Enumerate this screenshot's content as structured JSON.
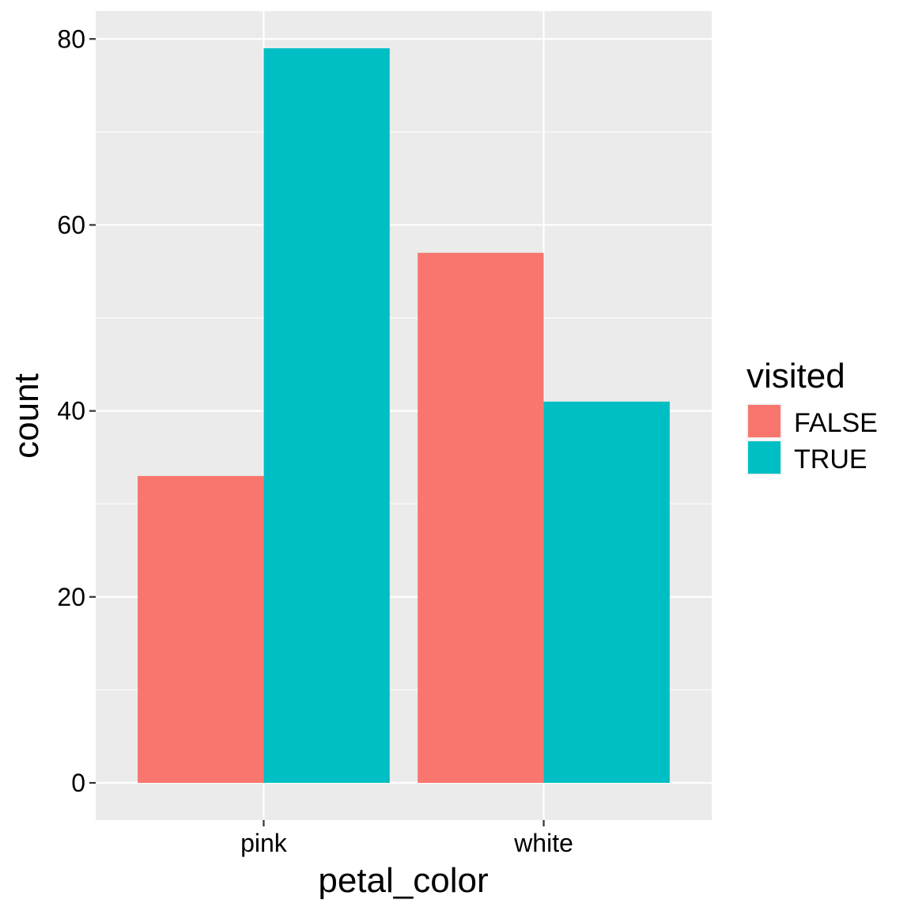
{
  "chart_data": {
    "type": "bar",
    "title": "",
    "xlabel": "petal_color",
    "ylabel": "count",
    "categories": [
      "pink",
      "white"
    ],
    "series": [
      {
        "name": "FALSE",
        "color": "#F8766D",
        "values": [
          33,
          57
        ]
      },
      {
        "name": "TRUE",
        "color": "#00BFC4",
        "values": [
          79,
          41
        ]
      }
    ],
    "ylim": [
      -4,
      83
    ],
    "yticks": [
      0,
      20,
      40,
      60,
      80
    ],
    "grid": true,
    "legend": {
      "title": "visited",
      "placement": "right"
    },
    "panel_background": "#EBEBEB"
  }
}
